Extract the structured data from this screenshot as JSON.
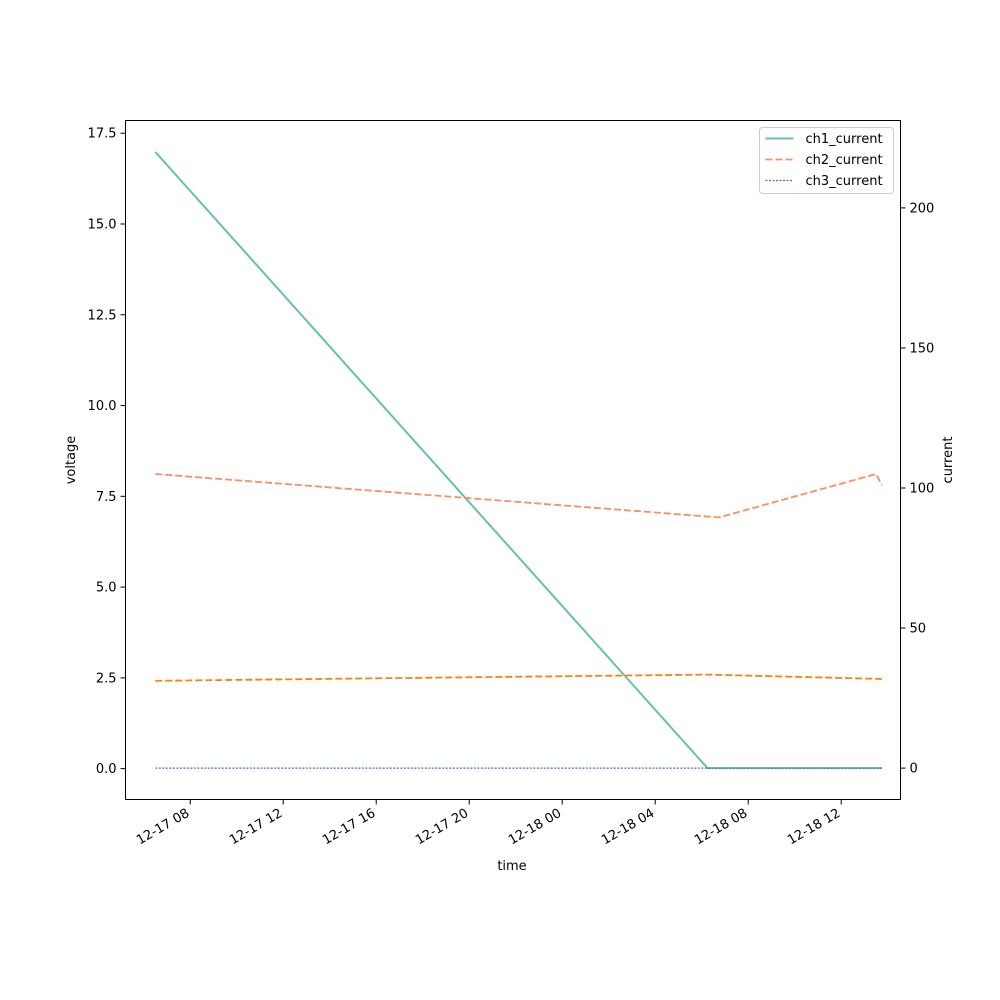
{
  "chart_data": {
    "type": "line",
    "title": "",
    "xlabel": "time",
    "ylabel_left": "voltage",
    "ylabel_right": "current",
    "x_ticks": [
      "12-17 08",
      "12-17 12",
      "12-17 16",
      "12-17 20",
      "12-18 00",
      "12-18 04",
      "12-18 08",
      "12-18 12"
    ],
    "x_range": [
      "2024-12-17T05:13",
      "2024-12-18T14:33"
    ],
    "left_axis": {
      "range": [
        -0.85,
        17.85
      ],
      "ticks": [
        "0.0",
        "2.5",
        "5.0",
        "7.5",
        "10.0",
        "12.5",
        "15.0",
        "17.5"
      ]
    },
    "right_axis": {
      "range": [
        -11.2,
        231.2
      ],
      "ticks": [
        "0",
        "50",
        "100",
        "150",
        "200"
      ]
    },
    "legend_placement": "top-right",
    "grid": false,
    "series": [
      {
        "name": "ch1_current",
        "axis": "right",
        "style": "solid",
        "color": "#66c2a5",
        "points": [
          [
            "2024-12-17T06:30",
            220
          ],
          [
            "2024-12-18T06:15",
            0
          ],
          [
            "2024-12-18T13:30",
            0
          ],
          [
            "2024-12-18T13:45",
            0
          ]
        ]
      },
      {
        "name": "ch2_current",
        "axis": "right",
        "style": "dashed",
        "color": "#fc8d62",
        "points": [
          [
            "2024-12-17T06:30",
            105
          ],
          [
            "2024-12-18T06:45",
            89.5
          ],
          [
            "2024-12-18T13:30",
            105
          ],
          [
            "2024-12-18T13:45",
            101
          ]
        ]
      },
      {
        "name": "ch3_current",
        "axis": "right",
        "style": "dotted",
        "color": "#4472c4",
        "points": [
          [
            "2024-12-17T06:30",
            0
          ],
          [
            "2024-12-18T13:45",
            0
          ]
        ]
      },
      {
        "axis": "left",
        "style": "dashed",
        "color": "#ff7f0e",
        "points": [
          [
            "2024-12-17T06:30",
            2.42
          ],
          [
            "2024-12-18T06:15",
            2.59
          ],
          [
            "2024-12-18T13:45",
            2.47
          ]
        ]
      }
    ]
  }
}
